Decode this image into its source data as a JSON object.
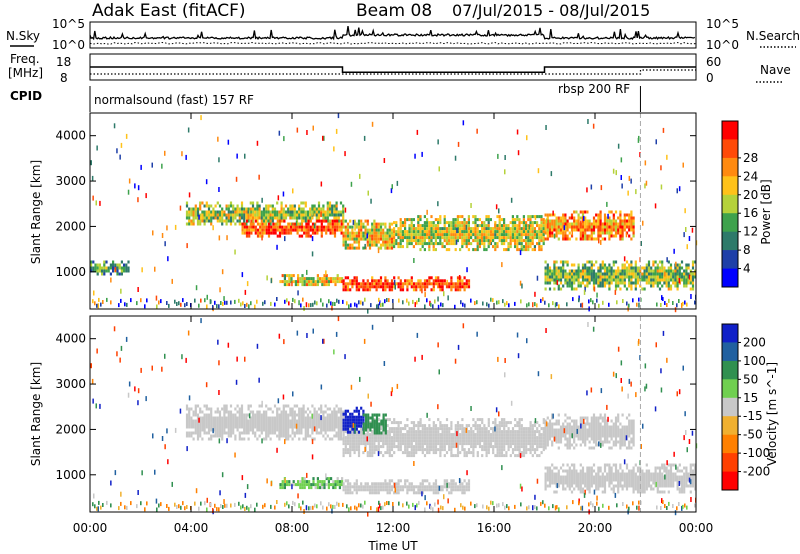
{
  "header": {
    "station": "Adak East (fitACF)",
    "beam": "Beam 08",
    "date_range": "07/Jul/2015 - 08/Jul/2015"
  },
  "labels": {
    "nsky": "N.Sky",
    "nsearch": "N.Search",
    "freq_line1": "Freq.",
    "freq_line2": "[MHz]",
    "nave": "Nave",
    "cpid": "CPID",
    "cpid_mode1": "normalsound (fast) 157 RF",
    "cpid_mode2": "rbsp 200 RF",
    "nsky_tick_top": "10^5",
    "nsky_tick_bottom": "10^0",
    "nsearch_tick_top": "10^5",
    "nsearch_tick_bottom": "10^0",
    "freq_tick_top": "18",
    "freq_tick_bottom": "8",
    "nave_tick_top": "60",
    "nave_tick_bottom": "0",
    "xlabel": "Time UT",
    "xticks": [
      "00:00",
      "04:00",
      "08:00",
      "12:00",
      "16:00",
      "20:00",
      "00:00"
    ]
  },
  "chart_data": [
    {
      "type": "heatmap",
      "title": "",
      "xlabel": "Time UT",
      "ylabel": "Slant Range [km]",
      "xlim": [
        0,
        24
      ],
      "ylim": [
        180,
        4500
      ],
      "yticks": [
        1000,
        2000,
        3000,
        4000
      ],
      "colorbar_label": "Power [dB]",
      "colorbar_ticks": [
        "4",
        "8",
        "12",
        "16",
        "20",
        "24",
        "28"
      ],
      "colorscale": [
        "#0000ff",
        "#1e3fa8",
        "#2e7a6a",
        "#3ea24c",
        "#b5d23a",
        "#ffc21a",
        "#ff8a10",
        "#ff4a08",
        "#ff0000"
      ],
      "grid": false,
      "echo_regions": [
        {
          "t0": 3.8,
          "t1": 10.0,
          "r0": 2050,
          "r1": 2550,
          "level": 0.5
        },
        {
          "t0": 6.0,
          "t1": 10.0,
          "r0": 1800,
          "r1": 2150,
          "level": 0.85
        },
        {
          "t0": 10.0,
          "t1": 12.0,
          "r0": 1500,
          "r1": 2150,
          "level": 0.6
        },
        {
          "t0": 12.0,
          "t1": 18.0,
          "r0": 1500,
          "r1": 2250,
          "level": 0.55
        },
        {
          "t0": 18.0,
          "t1": 21.5,
          "r0": 1700,
          "r1": 2350,
          "level": 0.7
        },
        {
          "t0": 7.5,
          "t1": 10.0,
          "r0": 700,
          "r1": 950,
          "level": 0.6
        },
        {
          "t0": 10.0,
          "t1": 15.0,
          "r0": 600,
          "r1": 900,
          "level": 0.85
        },
        {
          "t0": 18.0,
          "t1": 24.0,
          "r0": 650,
          "r1": 1250,
          "level": 0.45
        },
        {
          "t0": 0.0,
          "t1": 1.5,
          "r0": 950,
          "r1": 1250,
          "level": 0.35
        }
      ]
    },
    {
      "type": "heatmap",
      "title": "",
      "xlabel": "Time UT",
      "ylabel": "Slant Range [km]",
      "xlim": [
        0,
        24
      ],
      "ylim": [
        180,
        4500
      ],
      "yticks": [
        1000,
        2000,
        3000,
        4000
      ],
      "colorbar_label": "Velocity [m s^-1]",
      "colorbar_ticks": [
        "200",
        "100",
        "50",
        "15",
        "-15",
        "-50",
        "-100",
        "-200"
      ],
      "colorscale": [
        "#1020c8",
        "#2060a0",
        "#309050",
        "#70d050",
        "#c8c8c8",
        "#f0b030",
        "#ff8000",
        "#ff4000",
        "#ff0000"
      ],
      "grid": false,
      "echo_regions": [
        {
          "t0": 3.8,
          "t1": 10.0,
          "r0": 1800,
          "r1": 2550,
          "velocity": 0
        },
        {
          "t0": 10.0,
          "t1": 18.0,
          "r0": 1400,
          "r1": 2250,
          "velocity": 0
        },
        {
          "t0": 18.0,
          "t1": 21.5,
          "r0": 1600,
          "r1": 2350,
          "velocity": 0
        },
        {
          "t0": 10.0,
          "t1": 10.8,
          "r0": 1950,
          "r1": 2500,
          "velocity": 180
        },
        {
          "t0": 10.8,
          "t1": 11.7,
          "r0": 1950,
          "r1": 2350,
          "velocity": 60
        },
        {
          "t0": 7.5,
          "t1": 10.0,
          "r0": 700,
          "r1": 950,
          "velocity": 25
        },
        {
          "t0": 10.0,
          "t1": 15.0,
          "r0": 600,
          "r1": 900,
          "velocity": 0
        },
        {
          "t0": 18.0,
          "t1": 24.0,
          "r0": 650,
          "r1": 1250,
          "velocity": 0
        }
      ]
    }
  ],
  "summary_data": {
    "frequency_mhz_segments": [
      {
        "t0": 0,
        "t1": 10,
        "value": 13
      },
      {
        "t0": 10,
        "t1": 18,
        "value": 11
      },
      {
        "t0": 18,
        "t1": 24,
        "value": 13
      }
    ],
    "cpid_switch_time": 21.8
  }
}
